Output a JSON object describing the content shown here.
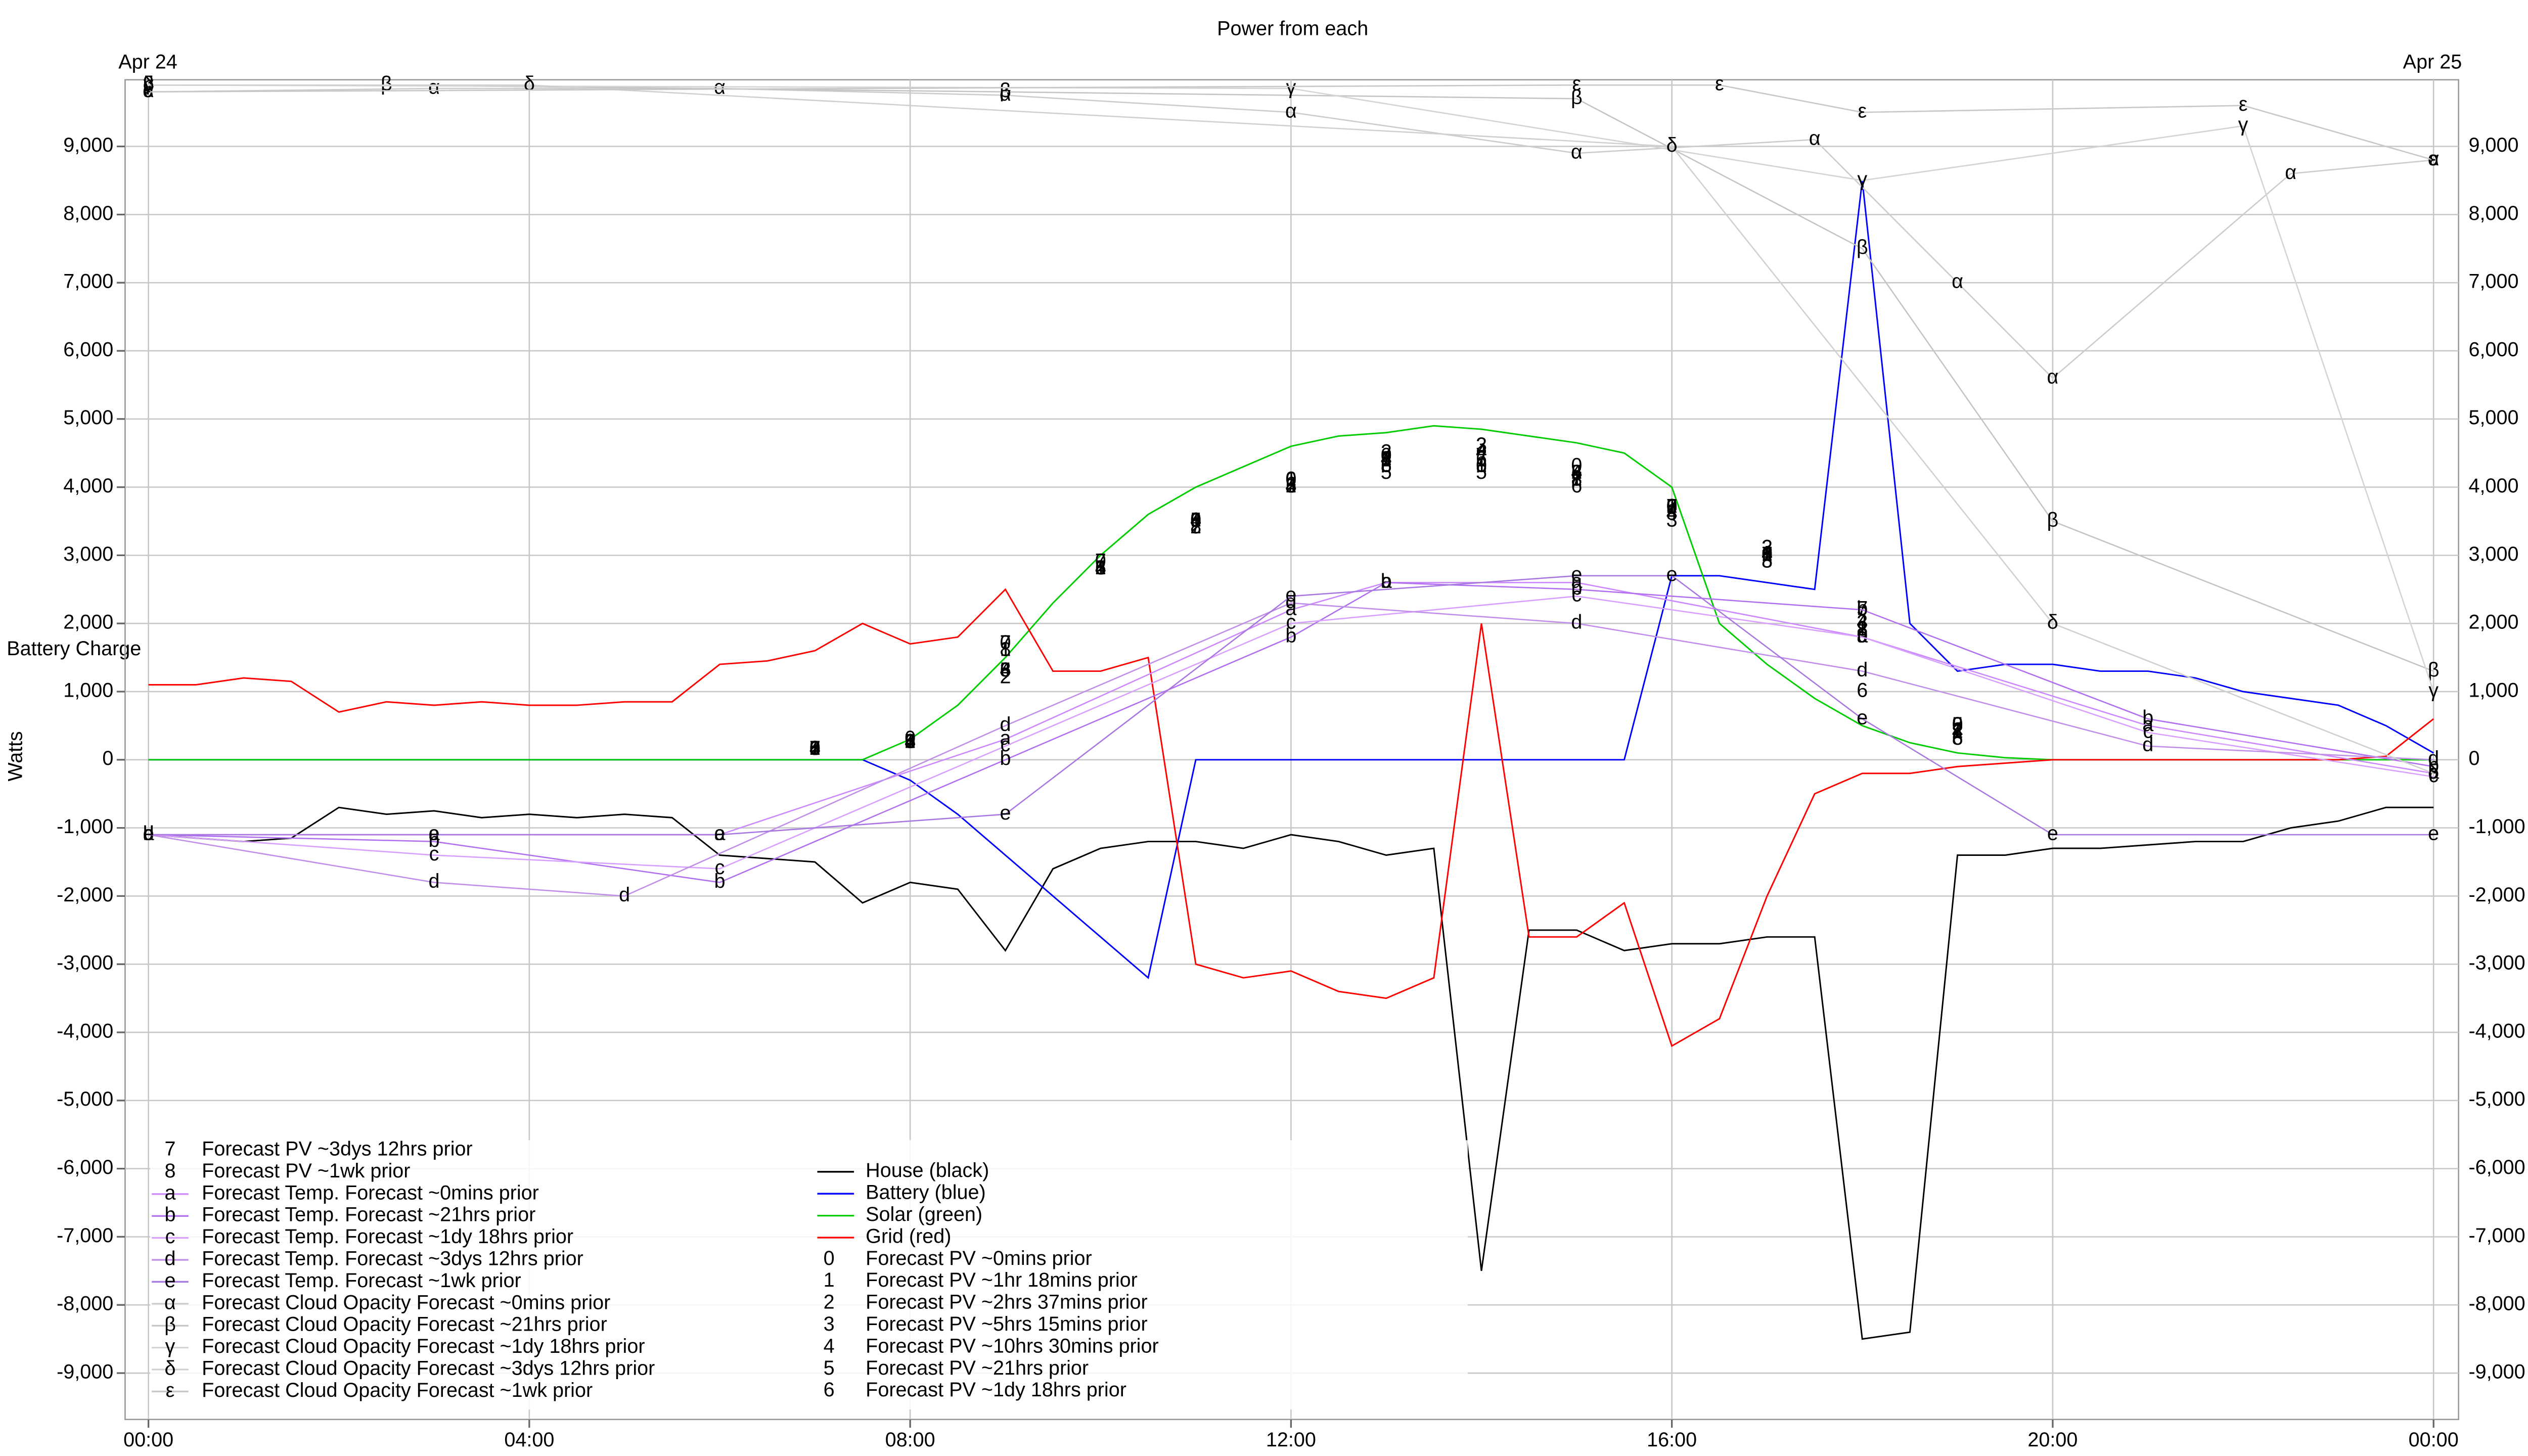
{
  "chart_data": {
    "type": "line",
    "title": "Power from each",
    "y_label": "Watts",
    "annotation": "Battery Charge",
    "date_start": "Apr 24",
    "date_end": "Apr 25",
    "xlim": [
      0,
      24
    ],
    "xticks": [
      {
        "value": 0,
        "label": "00:00"
      },
      {
        "value": 4,
        "label": "04:00"
      },
      {
        "value": 8,
        "label": "08:00"
      },
      {
        "value": 12,
        "label": "12:00"
      },
      {
        "value": 16,
        "label": "16:00"
      },
      {
        "value": 20,
        "label": "20:00"
      },
      {
        "value": 24,
        "label": "00:00"
      }
    ],
    "ylim": [
      -9680,
      9880
    ],
    "yticks": [
      {
        "value": -9000,
        "label": "-9,000"
      },
      {
        "value": -8000,
        "label": "-8,000"
      },
      {
        "value": -7000,
        "label": "-7,000"
      },
      {
        "value": -6000,
        "label": "-6,000"
      },
      {
        "value": -5000,
        "label": "-5,000"
      },
      {
        "value": -4000,
        "label": "-4,000"
      },
      {
        "value": -3000,
        "label": "-3,000"
      },
      {
        "value": -2000,
        "label": "-2,000"
      },
      {
        "value": -1000,
        "label": "-1,000"
      },
      0,
      {
        "value": 1000,
        "label": "1,000"
      },
      {
        "value": 2000,
        "label": "2,000"
      },
      {
        "value": 3000,
        "label": "3,000"
      },
      {
        "value": 4000,
        "label": "4,000"
      },
      {
        "value": 5000,
        "label": "5,000"
      },
      {
        "value": 6000,
        "label": "6,000"
      },
      {
        "value": 7000,
        "label": "7,000"
      },
      {
        "value": 8000,
        "label": "8,000"
      },
      {
        "value": 9000,
        "label": "9,000"
      }
    ],
    "grid": true,
    "legend": "bottom-left",
    "series": [
      {
        "name": "House (black)",
        "color": "#000000",
        "x": [
          0,
          0.5,
          1,
          1.5,
          2,
          2.5,
          3,
          3.5,
          4,
          4.5,
          5,
          5.5,
          6,
          6.5,
          7,
          7.5,
          8,
          8.5,
          9,
          9.5,
          10,
          10.5,
          11,
          11.5,
          12,
          12.5,
          13,
          13.5,
          14,
          14.5,
          15,
          15.5,
          16,
          16.5,
          17,
          17.5,
          18,
          18.5,
          19,
          19.5,
          20,
          20.5,
          21,
          21.5,
          22,
          22.5,
          23,
          23.5,
          24
        ],
        "values": [
          -1100,
          -1150,
          -1200,
          -1150,
          -700,
          -800,
          -750,
          -850,
          -800,
          -850,
          -800,
          -850,
          -1400,
          -1450,
          -1500,
          -2100,
          -1800,
          -1900,
          -2800,
          -1600,
          -1300,
          -1200,
          -1200,
          -1300,
          -1100,
          -1200,
          -1400,
          -1300,
          -7500,
          -2500,
          -2500,
          -2800,
          -2700,
          -2700,
          -2600,
          -2600,
          -8500,
          -8400,
          -1400,
          -1400,
          -1300,
          -1300,
          -1250,
          -1200,
          -1200,
          -1000,
          -900,
          -700,
          -700
        ]
      },
      {
        "name": "Battery (blue)",
        "color": "#0000ff",
        "x": [
          0,
          0.5,
          1,
          1.5,
          2,
          2.5,
          3,
          3.5,
          4,
          4.5,
          5,
          5.5,
          6,
          6.5,
          7,
          7.5,
          8,
          8.5,
          9,
          9.5,
          10,
          10.5,
          11,
          11.5,
          12,
          12.5,
          13,
          13.5,
          14,
          14.5,
          15,
          15.5,
          16,
          16.5,
          17,
          17.5,
          18,
          18.5,
          19,
          19.5,
          20,
          20.5,
          21,
          21.5,
          22,
          22.5,
          23,
          23.5,
          24
        ],
        "values": [
          0,
          0,
          0,
          0,
          0,
          0,
          0,
          0,
          0,
          0,
          0,
          0,
          0,
          0,
          0,
          0,
          -300,
          -800,
          -1400,
          -2000,
          -2600,
          -3200,
          0,
          0,
          0,
          0,
          0,
          0,
          0,
          0,
          0,
          0,
          2700,
          2700,
          2600,
          2500,
          8500,
          2000,
          1300,
          1400,
          1400,
          1300,
          1300,
          1200,
          1000,
          900,
          800,
          500,
          100
        ]
      },
      {
        "name": "Solar (green)",
        "color": "#00cc00",
        "x": [
          0,
          0.5,
          1,
          1.5,
          2,
          2.5,
          3,
          3.5,
          4,
          4.5,
          5,
          5.5,
          6,
          6.5,
          7,
          7.5,
          8,
          8.5,
          9,
          9.5,
          10,
          10.5,
          11,
          11.5,
          12,
          12.5,
          13,
          13.5,
          14,
          14.5,
          15,
          15.5,
          16,
          16.5,
          17,
          17.5,
          18,
          18.5,
          19,
          19.5,
          20,
          20.5,
          21,
          21.5,
          22,
          22.5,
          23,
          23.5,
          24
        ],
        "values": [
          0,
          0,
          0,
          0,
          0,
          0,
          0,
          0,
          0,
          0,
          0,
          0,
          0,
          0,
          0,
          0,
          300,
          800,
          1500,
          2300,
          3000,
          3600,
          4000,
          4300,
          4600,
          4750,
          4800,
          4900,
          4850,
          4750,
          4650,
          4500,
          4000,
          2000,
          1400,
          900,
          500,
          250,
          100,
          30,
          0,
          0,
          0,
          0,
          0,
          0,
          0,
          0,
          0
        ]
      },
      {
        "name": "Grid (red)",
        "color": "#ff0000",
        "x": [
          0,
          0.5,
          1,
          1.5,
          2,
          2.5,
          3,
          3.5,
          4,
          4.5,
          5,
          5.5,
          6,
          6.5,
          7,
          7.5,
          8,
          8.5,
          9,
          9.5,
          10,
          10.5,
          11,
          11.5,
          12,
          12.5,
          13,
          13.5,
          14,
          14.5,
          15,
          15.5,
          16,
          16.5,
          17,
          17.5,
          18,
          18.5,
          19,
          19.5,
          20,
          20.5,
          21,
          21.5,
          22,
          22.5,
          23,
          23.5,
          24
        ],
        "values": [
          1100,
          1100,
          1200,
          1150,
          700,
          850,
          800,
          850,
          800,
          800,
          850,
          850,
          1400,
          1450,
          1600,
          2000,
          1700,
          1800,
          2500,
          1300,
          1300,
          1500,
          -3000,
          -3200,
          -3100,
          -3400,
          -3500,
          -3200,
          2000,
          -2600,
          -2600,
          -2100,
          -4200,
          -3800,
          -2000,
          -500,
          -200,
          -200,
          -100,
          -50,
          0,
          0,
          0,
          0,
          0,
          0,
          0,
          50,
          600
        ]
      },
      {
        "name": "Forecast PV ~0mins prior",
        "marker": "0",
        "line": false,
        "color": "#000000",
        "x": [
          7,
          8,
          9,
          10,
          11,
          12,
          13,
          14,
          15,
          16,
          17,
          18,
          19
        ],
        "values": [
          150,
          300,
          1700,
          2900,
          3500,
          4100,
          4450,
          4300,
          4300,
          3700,
          3000,
          1800,
          500
        ]
      },
      {
        "name": "Forecast PV ~1hr 18mins prior",
        "marker": "1",
        "line": false,
        "color": "#000000",
        "x": [
          7,
          8,
          9,
          10,
          11,
          12,
          13,
          14,
          15,
          16,
          17,
          18,
          19
        ],
        "values": [
          150,
          250,
          1600,
          2800,
          3500,
          4100,
          4400,
          4300,
          4100,
          3700,
          3000,
          1900,
          400
        ]
      },
      {
        "name": "Forecast PV ~2hrs 37mins prior",
        "marker": "2",
        "line": false,
        "color": "#000000",
        "x": [
          7,
          8,
          9,
          10,
          11,
          12,
          13,
          14,
          15,
          16,
          17,
          18,
          19
        ],
        "values": [
          150,
          250,
          1200,
          2800,
          3400,
          4000,
          4500,
          4600,
          4200,
          3700,
          3100,
          1900,
          400
        ]
      },
      {
        "name": "Forecast PV ~5hrs 15mins prior",
        "marker": "3",
        "line": false,
        "color": "#000000",
        "x": [
          7,
          8,
          9,
          10,
          11,
          12,
          13,
          14,
          15,
          16,
          17,
          18,
          19
        ],
        "values": [
          150,
          250,
          1300,
          2800,
          3500,
          4000,
          4400,
          4600,
          4200,
          3500,
          3100,
          2000,
          500
        ]
      },
      {
        "name": "Forecast PV ~10hrs 30mins prior",
        "marker": "4",
        "line": false,
        "color": "#000000",
        "x": [
          7,
          8,
          9,
          10,
          11,
          12,
          13,
          14,
          15,
          16,
          17,
          18,
          19
        ],
        "values": [
          150,
          250,
          1300,
          2800,
          3500,
          4000,
          4400,
          4500,
          4200,
          3600,
          3000,
          2000,
          400
        ]
      },
      {
        "name": "Forecast PV ~21hrs prior",
        "marker": "5",
        "line": false,
        "color": "#000000",
        "x": [
          7,
          8,
          9,
          10,
          11,
          12,
          13,
          14,
          15,
          16,
          17,
          18,
          19
        ],
        "values": [
          150,
          250,
          1300,
          2800,
          3500,
          4000,
          4200,
          4200,
          4200,
          3700,
          2900,
          2200,
          500
        ]
      },
      {
        "name": "Forecast PV ~1dy 18hrs prior",
        "marker": "6",
        "line": false,
        "color": "#000000",
        "x": [
          7,
          8,
          9,
          10,
          11,
          12,
          13,
          14,
          15,
          16,
          17,
          18,
          19
        ],
        "values": [
          150,
          250,
          1300,
          2800,
          3500,
          4100,
          4300,
          4400,
          4000,
          3700,
          3000,
          1000,
          300
        ]
      },
      {
        "name": "Forecast PV ~3dys 12hrs prior",
        "marker": "7",
        "line": false,
        "color": "#000000",
        "x": [
          7,
          8,
          9,
          10,
          11,
          12,
          13,
          14,
          15,
          16,
          17,
          18,
          19
        ],
        "values": [
          150,
          250,
          1700,
          2900,
          3400,
          4000,
          4400,
          4400,
          4100,
          3700,
          3000,
          2200,
          400
        ]
      },
      {
        "name": "Forecast PV ~1wk prior",
        "marker": "8",
        "line": false,
        "color": "#000000",
        "x": [
          7,
          8,
          9,
          10,
          11,
          12,
          13,
          14,
          15,
          16,
          17,
          18,
          19
        ],
        "values": [
          150,
          250,
          1600,
          2800,
          3400,
          4000,
          4300,
          4300,
          4100,
          3600,
          2900,
          1900,
          300
        ]
      },
      {
        "name": "Forecast Temp. Forecast ~0mins prior",
        "marker": "a",
        "color": "#cc88ff",
        "x": [
          0,
          3,
          6,
          9,
          12,
          13,
          15,
          18,
          21,
          24
        ],
        "values": [
          -1100,
          -1100,
          -1100,
          300,
          2200,
          2600,
          2600,
          1800,
          500,
          -200
        ]
      },
      {
        "name": "Forecast Temp. Forecast ~21hrs prior",
        "marker": "b",
        "color": "#b070f0",
        "x": [
          0,
          3,
          6,
          9,
          12,
          13,
          15,
          18,
          21,
          24
        ],
        "values": [
          -1100,
          -1200,
          -1800,
          0,
          1800,
          2600,
          2500,
          2200,
          600,
          -100
        ]
      },
      {
        "name": "Forecast Temp. Forecast ~1dy 18hrs prior",
        "marker": "c",
        "color": "#d8a0ff",
        "x": [
          0,
          3,
          6,
          9,
          12,
          15,
          18,
          21,
          24
        ],
        "values": [
          -1100,
          -1400,
          -1600,
          200,
          2000,
          2400,
          1800,
          400,
          -250
        ]
      },
      {
        "name": "Forecast Temp. Forecast ~3dys 12hrs prior",
        "marker": "d",
        "color": "#c090e8",
        "x": [
          0,
          3,
          5,
          9,
          12,
          15,
          18,
          21,
          24
        ],
        "values": [
          -1100,
          -1800,
          -2000,
          500,
          2300,
          2000,
          1300,
          200,
          0
        ]
      },
      {
        "name": "Forecast Temp. Forecast ~1wk prior",
        "marker": "e",
        "color": "#a878e0",
        "x": [
          0,
          3,
          6,
          9,
          12,
          15,
          16,
          18,
          20,
          24
        ],
        "values": [
          -1100,
          -1100,
          -1100,
          -800,
          2400,
          2700,
          2700,
          600,
          -1100,
          -1100
        ]
      },
      {
        "name": "Forecast Cloud Opacity Forecast ~0mins prior",
        "marker": "α",
        "color": "#cccccc",
        "x": [
          0,
          3,
          6,
          9,
          12,
          15,
          17.5,
          19,
          20,
          22.5,
          24
        ],
        "values": [
          9800,
          9850,
          9850,
          9750,
          9500,
          8900,
          9100,
          7000,
          5600,
          8600,
          8800
        ]
      },
      {
        "name": "Forecast Cloud Opacity Forecast ~21hrs prior",
        "marker": "β",
        "color": "#c4c4c4",
        "x": [
          0,
          2.5,
          9,
          15,
          18,
          20,
          24
        ],
        "values": [
          9900,
          9900,
          9800,
          9700,
          7500,
          3500,
          1300
        ]
      },
      {
        "name": "Forecast Cloud Opacity Forecast ~1dy 18hrs prior",
        "marker": "γ",
        "color": "#d4d4d4",
        "x": [
          0,
          12,
          18,
          22,
          24
        ],
        "values": [
          9900,
          9850,
          8500,
          9300,
          1000
        ]
      },
      {
        "name": "Forecast Cloud Opacity Forecast ~3dys 12hrs prior",
        "marker": "δ",
        "color": "#d0d0d0",
        "x": [
          0,
          4,
          16,
          20,
          24
        ],
        "values": [
          9900,
          9900,
          9000,
          2000,
          -200
        ]
      },
      {
        "name": "Forecast Cloud Opacity Forecast ~1wk prior",
        "marker": "ε",
        "color": "#c8c8c8",
        "x": [
          0,
          15,
          16.5,
          18,
          22,
          24
        ],
        "values": [
          9800,
          9900,
          9900,
          9500,
          9600,
          8800
        ]
      }
    ]
  }
}
